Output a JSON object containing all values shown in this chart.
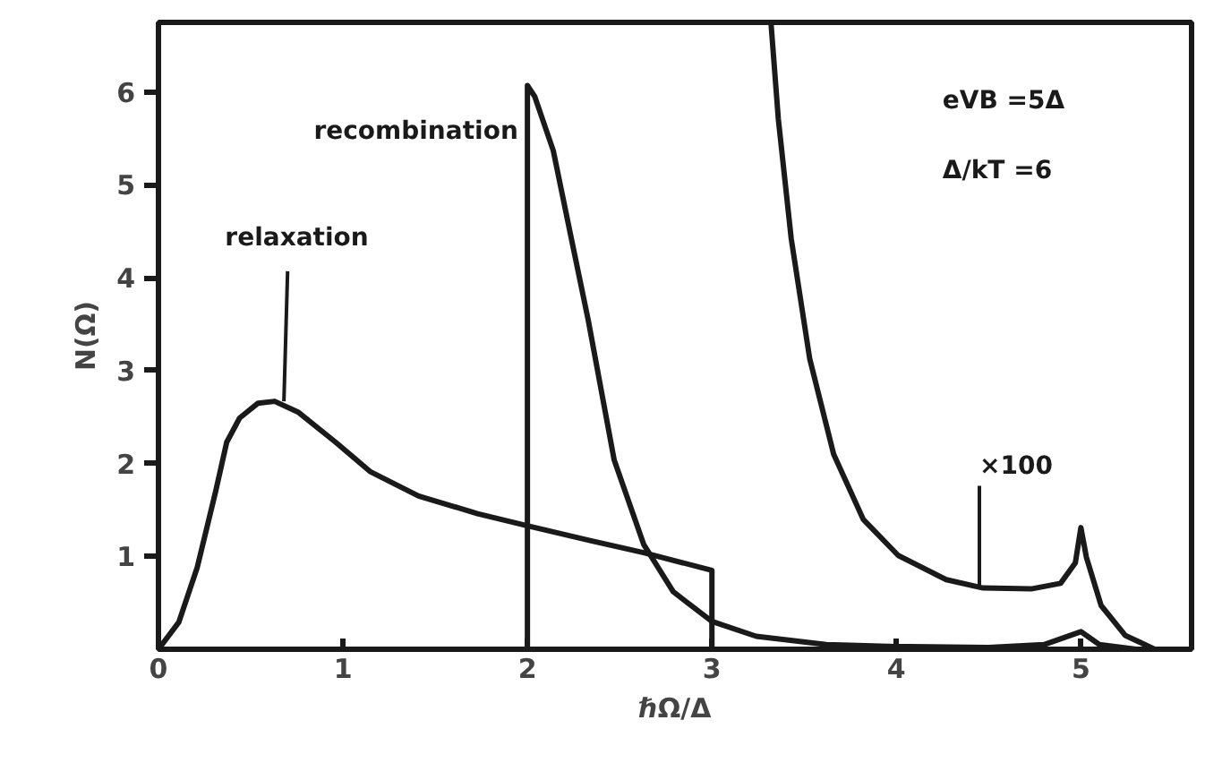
{
  "chart_data": {
    "type": "line",
    "xlabel": "ℏΩ/Δ",
    "ylabel": "N(Ω)",
    "xlim": [
      0,
      5.6
    ],
    "ylim": [
      0,
      6.75
    ],
    "xticks": [
      0,
      1,
      2,
      3,
      4,
      5
    ],
    "yticks": [
      1,
      2,
      3,
      4,
      5,
      6
    ],
    "grid": false,
    "marker": "none",
    "line_style": "solid",
    "series": [
      {
        "name": "relaxation",
        "color": "#1a1a1a",
        "x": [
          0,
          0.11,
          0.21,
          0.31,
          0.37,
          0.44,
          0.54,
          0.63,
          0.76,
          0.96,
          1.15,
          1.41,
          1.73,
          2.0,
          2.34,
          2.63,
          3.0,
          3.0
        ],
        "values": [
          0,
          0.29,
          0.88,
          1.7,
          2.23,
          2.49,
          2.65,
          2.67,
          2.55,
          2.23,
          1.91,
          1.65,
          1.46,
          1.33,
          1.17,
          1.04,
          0.85,
          0
        ]
      },
      {
        "name": "recombination",
        "color": "#1a1a1a",
        "x": [
          0,
          2.0,
          2.0,
          2.04,
          2.14,
          2.23,
          2.33,
          2.47,
          2.63,
          2.79,
          3.0,
          3.24,
          3.62,
          4.0,
          4.5,
          4.8,
          5.0,
          5.1,
          5.3
        ],
        "values": [
          0,
          0,
          6.07,
          5.95,
          5.37,
          4.5,
          3.54,
          2.04,
          1.13,
          0.62,
          0.3,
          0.14,
          0.05,
          0.03,
          0.02,
          0.05,
          0.19,
          0.05,
          0
        ]
      },
      {
        "color": "#1a1a1a",
        "x": [
          3.32,
          3.36,
          3.43,
          3.53,
          3.66,
          3.82,
          4.01,
          4.27,
          4.47,
          4.73,
          4.89,
          4.97,
          5.0,
          5.03,
          5.11,
          5.24,
          5.4
        ],
        "values": [
          6.75,
          5.71,
          4.42,
          3.13,
          2.1,
          1.4,
          1.01,
          0.75,
          0.66,
          0.65,
          0.71,
          0.93,
          1.31,
          0.99,
          0.47,
          0.15,
          0
        ]
      }
    ],
    "annotations": [
      "eVB =5Δ",
      "Δ/kT =6",
      {
        "text": "×100",
        "x": 4.45,
        "y": 0.66
      }
    ]
  }
}
